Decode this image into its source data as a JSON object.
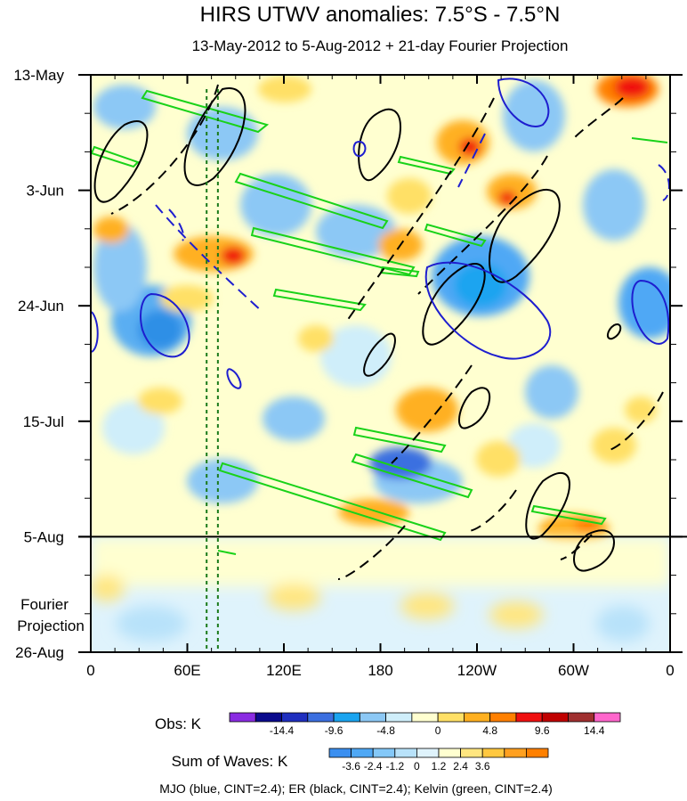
{
  "chart_data": {
    "type": "heatmap",
    "title": "HIRS UTWV anomalies: 7.5°S - 7.5°N",
    "subtitle": "13-May-2012 to 5-Aug-2012 + 21-day Fourier Projection",
    "xlabel": "",
    "ylabel": "",
    "x_ticks": [
      "0",
      "60E",
      "120E",
      "180",
      "120W",
      "60W",
      "0"
    ],
    "x_range_deg": [
      0,
      360
    ],
    "y_ticks": [
      "13-May",
      "3-Jun",
      "24-Jun",
      "15-Jul",
      "5-Aug",
      "26-Aug"
    ],
    "y_range_days": [
      0,
      105
    ],
    "observation_end_day": 84,
    "projection_label": [
      "Fourier",
      "Projection"
    ],
    "obs_colorbar": {
      "label": "Obs: K",
      "tick_labels": [
        "-14.4",
        "-9.6",
        "-4.8",
        "0",
        "4.8",
        "9.6",
        "14.4"
      ],
      "colors": [
        "#8a2be2",
        "#0a0a8c",
        "#1f2fbf",
        "#3b6fe0",
        "#1aa4f0",
        "#8cc8f5",
        "#cfeefa",
        "#ffffd0",
        "#ffe066",
        "#ffb020",
        "#ff8000",
        "#f01010",
        "#c00000",
        "#a03030",
        "#ff66cc"
      ]
    },
    "waves_colorbar": {
      "label": "Sum of Waves: K",
      "tick_labels": [
        "-3.6",
        "-2.4",
        "-1.2",
        "0",
        "1.2",
        "2.4",
        "3.6"
      ],
      "colors": [
        "#3b8ff0",
        "#4fa8f5",
        "#84c8f8",
        "#b8e2fa",
        "#dff3fc",
        "#ffffd0",
        "#ffe680",
        "#ffc840",
        "#ffa020",
        "#ff8000"
      ]
    },
    "reference_lines_deg": [
      72,
      79
    ],
    "wave_contours": [
      {
        "name": "MJO",
        "color": "blue",
        "cint": 2.4
      },
      {
        "name": "ER",
        "color": "black",
        "cint": 2.4
      },
      {
        "name": "Kelvin",
        "color": "green",
        "cint": 2.4
      }
    ],
    "footer": "MJO (blue, CINT=2.4); ER (black, CINT=2.4); Kelvin (green, CINT=2.4)"
  }
}
